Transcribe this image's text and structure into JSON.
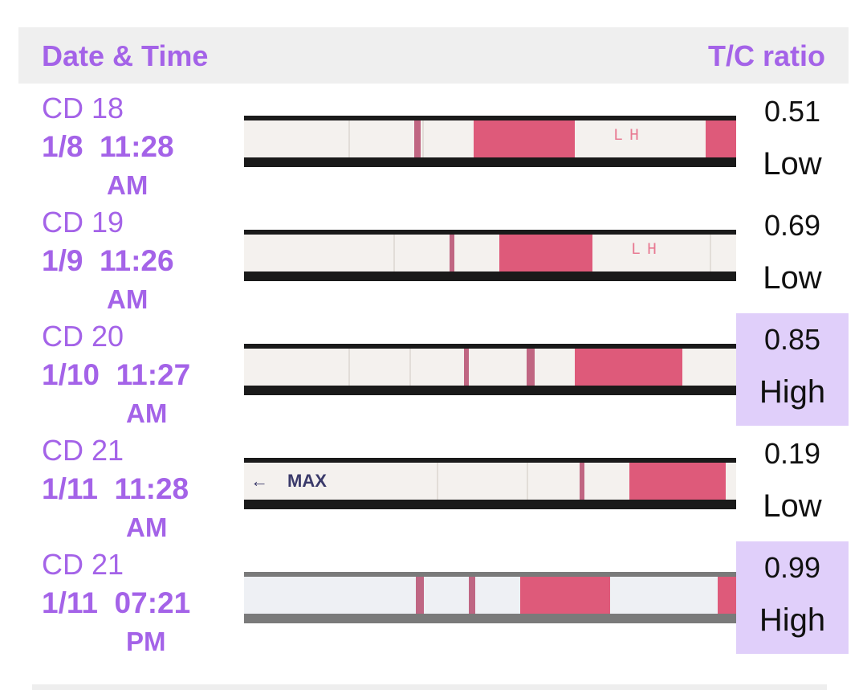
{
  "header": {
    "left_label": "Date & Time",
    "right_label": "T/C ratio"
  },
  "colors": {
    "accent": "#a463e8",
    "high_bg": "#e0cffa",
    "pad": "#de5a7a"
  },
  "rows": [
    {
      "cd": "CD 18",
      "date": "1/8",
      "time": "11:28",
      "ampm": "AM",
      "ratio": "0.51",
      "level": "Low",
      "strip_text": "LH",
      "max_text": ""
    },
    {
      "cd": "CD 19",
      "date": "1/9",
      "time": "11:26",
      "ampm": "AM",
      "ratio": "0.69",
      "level": "Low",
      "strip_text": "LH",
      "max_text": ""
    },
    {
      "cd": "CD 20",
      "date": "1/10",
      "time": "11:27",
      "ampm": "AM",
      "ratio": "0.85",
      "level": "High",
      "strip_text": "",
      "max_text": ""
    },
    {
      "cd": "CD 21",
      "date": "1/11",
      "time": "11:28",
      "ampm": "AM",
      "ratio": "0.19",
      "level": "Low",
      "strip_text": "",
      "max_text": "MAX"
    },
    {
      "cd": "CD 21",
      "date": "1/11",
      "time": "07:21",
      "ampm": "PM",
      "ratio": "0.99",
      "level": "High",
      "strip_text": "",
      "max_text": ""
    }
  ]
}
